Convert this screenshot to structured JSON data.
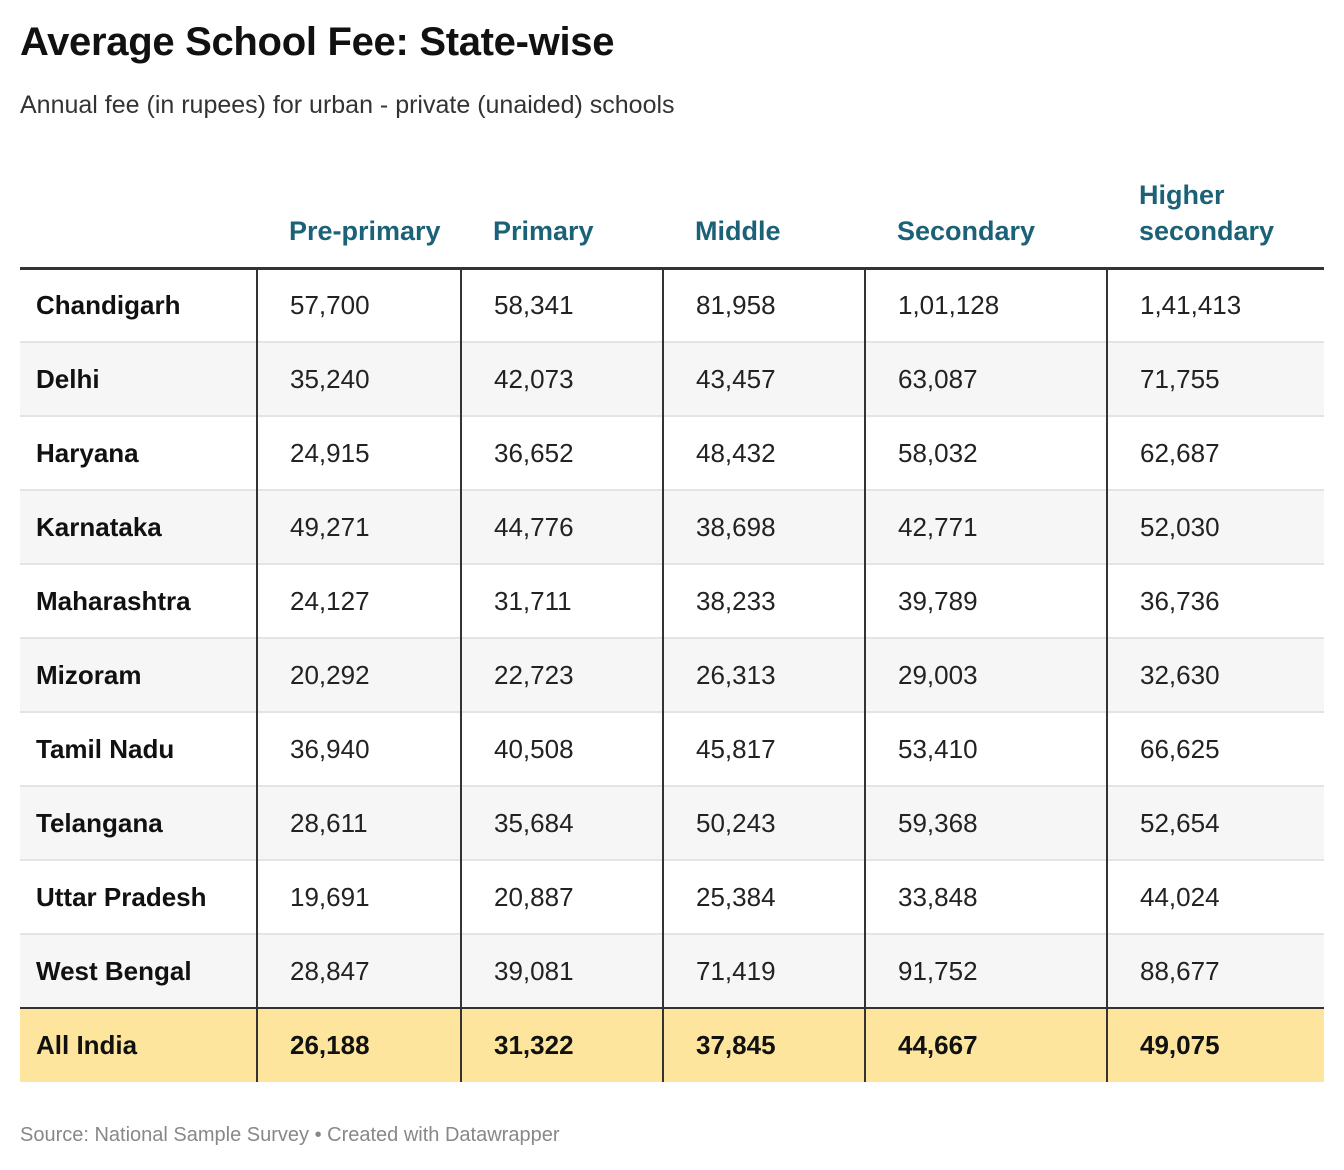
{
  "header": {
    "title": "Average School Fee: State-wise",
    "subtitle": "Annual fee (in rupees) for urban - private (unaided) schools"
  },
  "footer": {
    "source": "Source: National Sample Survey • Created with Datawrapper"
  },
  "colors": {
    "header_text": "#1b6278",
    "highlight_row": "#fde59e",
    "alt_row": "#f6f6f6"
  },
  "chart_data": {
    "type": "table",
    "title": "Average School Fee: State-wise",
    "subtitle": "Annual fee (in rupees) for urban - private (unaided) schools",
    "columns": [
      "",
      "Pre-primary",
      "Primary",
      "Middle",
      "Secondary",
      "Higher secondary"
    ],
    "rows": [
      {
        "state": "Chandigarh",
        "values": [
          "57,700",
          "58,341",
          "81,958",
          "1,01,128",
          "1,41,413"
        ]
      },
      {
        "state": "Delhi",
        "values": [
          "35,240",
          "42,073",
          "43,457",
          "63,087",
          "71,755"
        ]
      },
      {
        "state": "Haryana",
        "values": [
          "24,915",
          "36,652",
          "48,432",
          "58,032",
          "62,687"
        ]
      },
      {
        "state": "Karnataka",
        "values": [
          "49,271",
          "44,776",
          "38,698",
          "42,771",
          "52,030"
        ]
      },
      {
        "state": "Maharashtra",
        "values": [
          "24,127",
          "31,711",
          "38,233",
          "39,789",
          "36,736"
        ]
      },
      {
        "state": "Mizoram",
        "values": [
          "20,292",
          "22,723",
          "26,313",
          "29,003",
          "32,630"
        ]
      },
      {
        "state": "Tamil Nadu",
        "values": [
          "36,940",
          "40,508",
          "45,817",
          "53,410",
          "66,625"
        ]
      },
      {
        "state": "Telangana",
        "values": [
          "28,611",
          "35,684",
          "50,243",
          "59,368",
          "52,654"
        ]
      },
      {
        "state": "Uttar Pradesh",
        "values": [
          "19,691",
          "20,887",
          "25,384",
          "33,848",
          "44,024"
        ]
      },
      {
        "state": "West Bengal",
        "values": [
          "28,847",
          "39,081",
          "71,419",
          "91,752",
          "88,677"
        ]
      }
    ],
    "total": {
      "state": "All India",
      "values": [
        "26,188",
        "31,322",
        "37,845",
        "44,667",
        "49,075"
      ]
    }
  }
}
